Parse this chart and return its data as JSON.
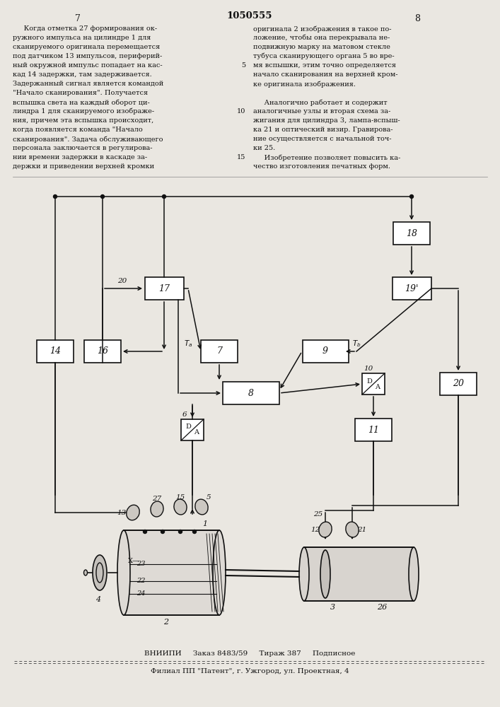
{
  "bg_color": "#eae7e1",
  "page_num_left": "7",
  "page_title": "1050555",
  "page_num_right": "8",
  "left_col_lines": [
    "     Когда отметка 27 формирования ок-",
    "ружного импульса на цилиндре 1 для",
    "сканируемого оригинала перемещается",
    "под датчиком 13 импульсов, периферий-",
    "ный окружной импульс попадает на кас-",
    "кад 14 задержки, там задерживается.",
    "Задержанный сигнал является командой",
    "\"Начало сканирования\". Получается",
    "вспышка света на каждый оборот ци-",
    "линдра 1 для сканируемого изображе-",
    "ния, причем эта вспышка происходит,",
    "когда появляется команда \"Начало",
    "сканирования\". Задача обслуживающего",
    "персонала заключается в регулирова-",
    "нии времени задержки в каскаде за-",
    "держки и приведении верхней кромки"
  ],
  "right_col_lines": [
    "оригинала 2 изображения в такое по-",
    "ложение, чтобы она перекрывала не-",
    "подвижную марку на матовом стекле",
    "тубуса сканирующего органа 5 во вре-",
    "мя вспышки, этим точно определяется",
    "начало сканирования на верхней кром-",
    "ке оригинала изображения.",
    "",
    "     Аналогично работает и содержит",
    "аналогичные узлы и вторая схема за-",
    "жигания для цилиндра 3, лампа-вспыш-",
    "ка 21 и оптический визир. Гравирова-",
    "ние осуществляется с начальной точ-",
    "ки 25.",
    "     Изобретение позволяет повысить ка-",
    "чество изготовления печатных форм."
  ],
  "footer1": "ВНИИПИ     Заказ 8483/59     Тираж 387     Подписное",
  "footer2": "Филиал ПП \"Патент\", г. Ужгород, ул. Проектная, 4"
}
